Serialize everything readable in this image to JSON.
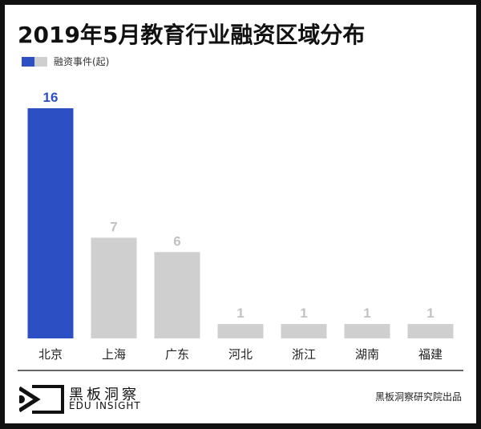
{
  "chart_data": {
    "type": "bar",
    "title": "2019年5月教育行业融资区域分布",
    "categories": [
      "北京",
      "上海",
      "广东",
      "河北",
      "浙江",
      "湖南",
      "福建"
    ],
    "series": [
      {
        "name": "融资事件(起)",
        "values": [
          16,
          7,
          6,
          1,
          1,
          1,
          1
        ]
      }
    ],
    "value_labels": [
      "16",
      "7",
      "6",
      "1",
      "1",
      "1",
      "1"
    ],
    "ylim": [
      0,
      16
    ],
    "grid": false,
    "legend_position": "top-left",
    "colors": {
      "highlight": "#2c4fc4",
      "default": "#cfcfcf",
      "highlight_label": "#2c4fc4",
      "default_label": "#c2c2c2"
    }
  },
  "footer": {
    "logo_cn": "黑板洞察",
    "logo_en": "EDU INSIGHT",
    "credit": "黑板洞察研究院出品"
  }
}
